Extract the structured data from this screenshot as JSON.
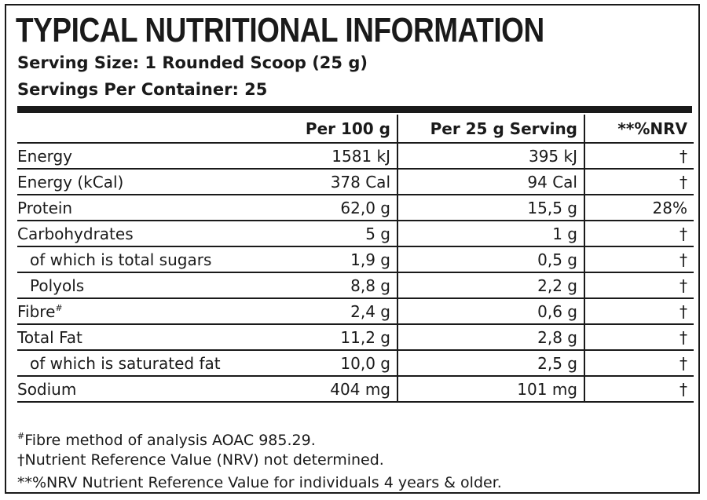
{
  "label": {
    "title": "TYPICAL NUTRITIONAL INFORMATION",
    "serving_size": "Serving Size: 1 Rounded Scoop (25 g)",
    "servings_per_container": "Servings Per Container: 25"
  },
  "table": {
    "headers": [
      "",
      "Per 100 g",
      "Per 25 g Serving",
      "**%NRV"
    ],
    "rows": [
      {
        "name": "Energy",
        "per100": "1581 kJ",
        "perServing": "395 kJ",
        "nrv": "†"
      },
      {
        "name": "Energy (kCal)",
        "per100": "378 Cal",
        "perServing": "94 Cal",
        "nrv": "†"
      },
      {
        "name": "Protein",
        "per100": "62,0 g",
        "perServing": "15,5 g",
        "nrv": "28%"
      },
      {
        "name": "Carbohydrates",
        "per100": "5 g",
        "perServing": "1 g",
        "nrv": "†"
      },
      {
        "name": "of which is total sugars",
        "per100": "1,9 g",
        "perServing": "0,5 g",
        "nrv": "†"
      },
      {
        "name": "Polyols",
        "per100": "8,8 g",
        "perServing": "2,2 g",
        "nrv": "†"
      },
      {
        "name": "Fibre",
        "sup": "#",
        "per100": "2,4 g",
        "perServing": "0,6 g",
        "nrv": "†"
      },
      {
        "name": "Total Fat",
        "per100": "11,2 g",
        "perServing": "2,8 g",
        "nrv": "†"
      },
      {
        "name": "of which is saturated fat",
        "per100": "10,0 g",
        "perServing": "2,5 g",
        "nrv": "†"
      },
      {
        "name": "Sodium",
        "per100": "404 mg",
        "perServing": "101 mg",
        "nrv": "†"
      }
    ]
  },
  "footnotes": {
    "fibre_mark": "#",
    "fibre_text": "Fibre method of analysis AOAC 985.29.",
    "nrv_not_determined": "†Nutrient Reference Value (NRV) not determined.",
    "nrv_definition": "**%NRV Nutrient Reference Value for individuals 4 years & older."
  }
}
